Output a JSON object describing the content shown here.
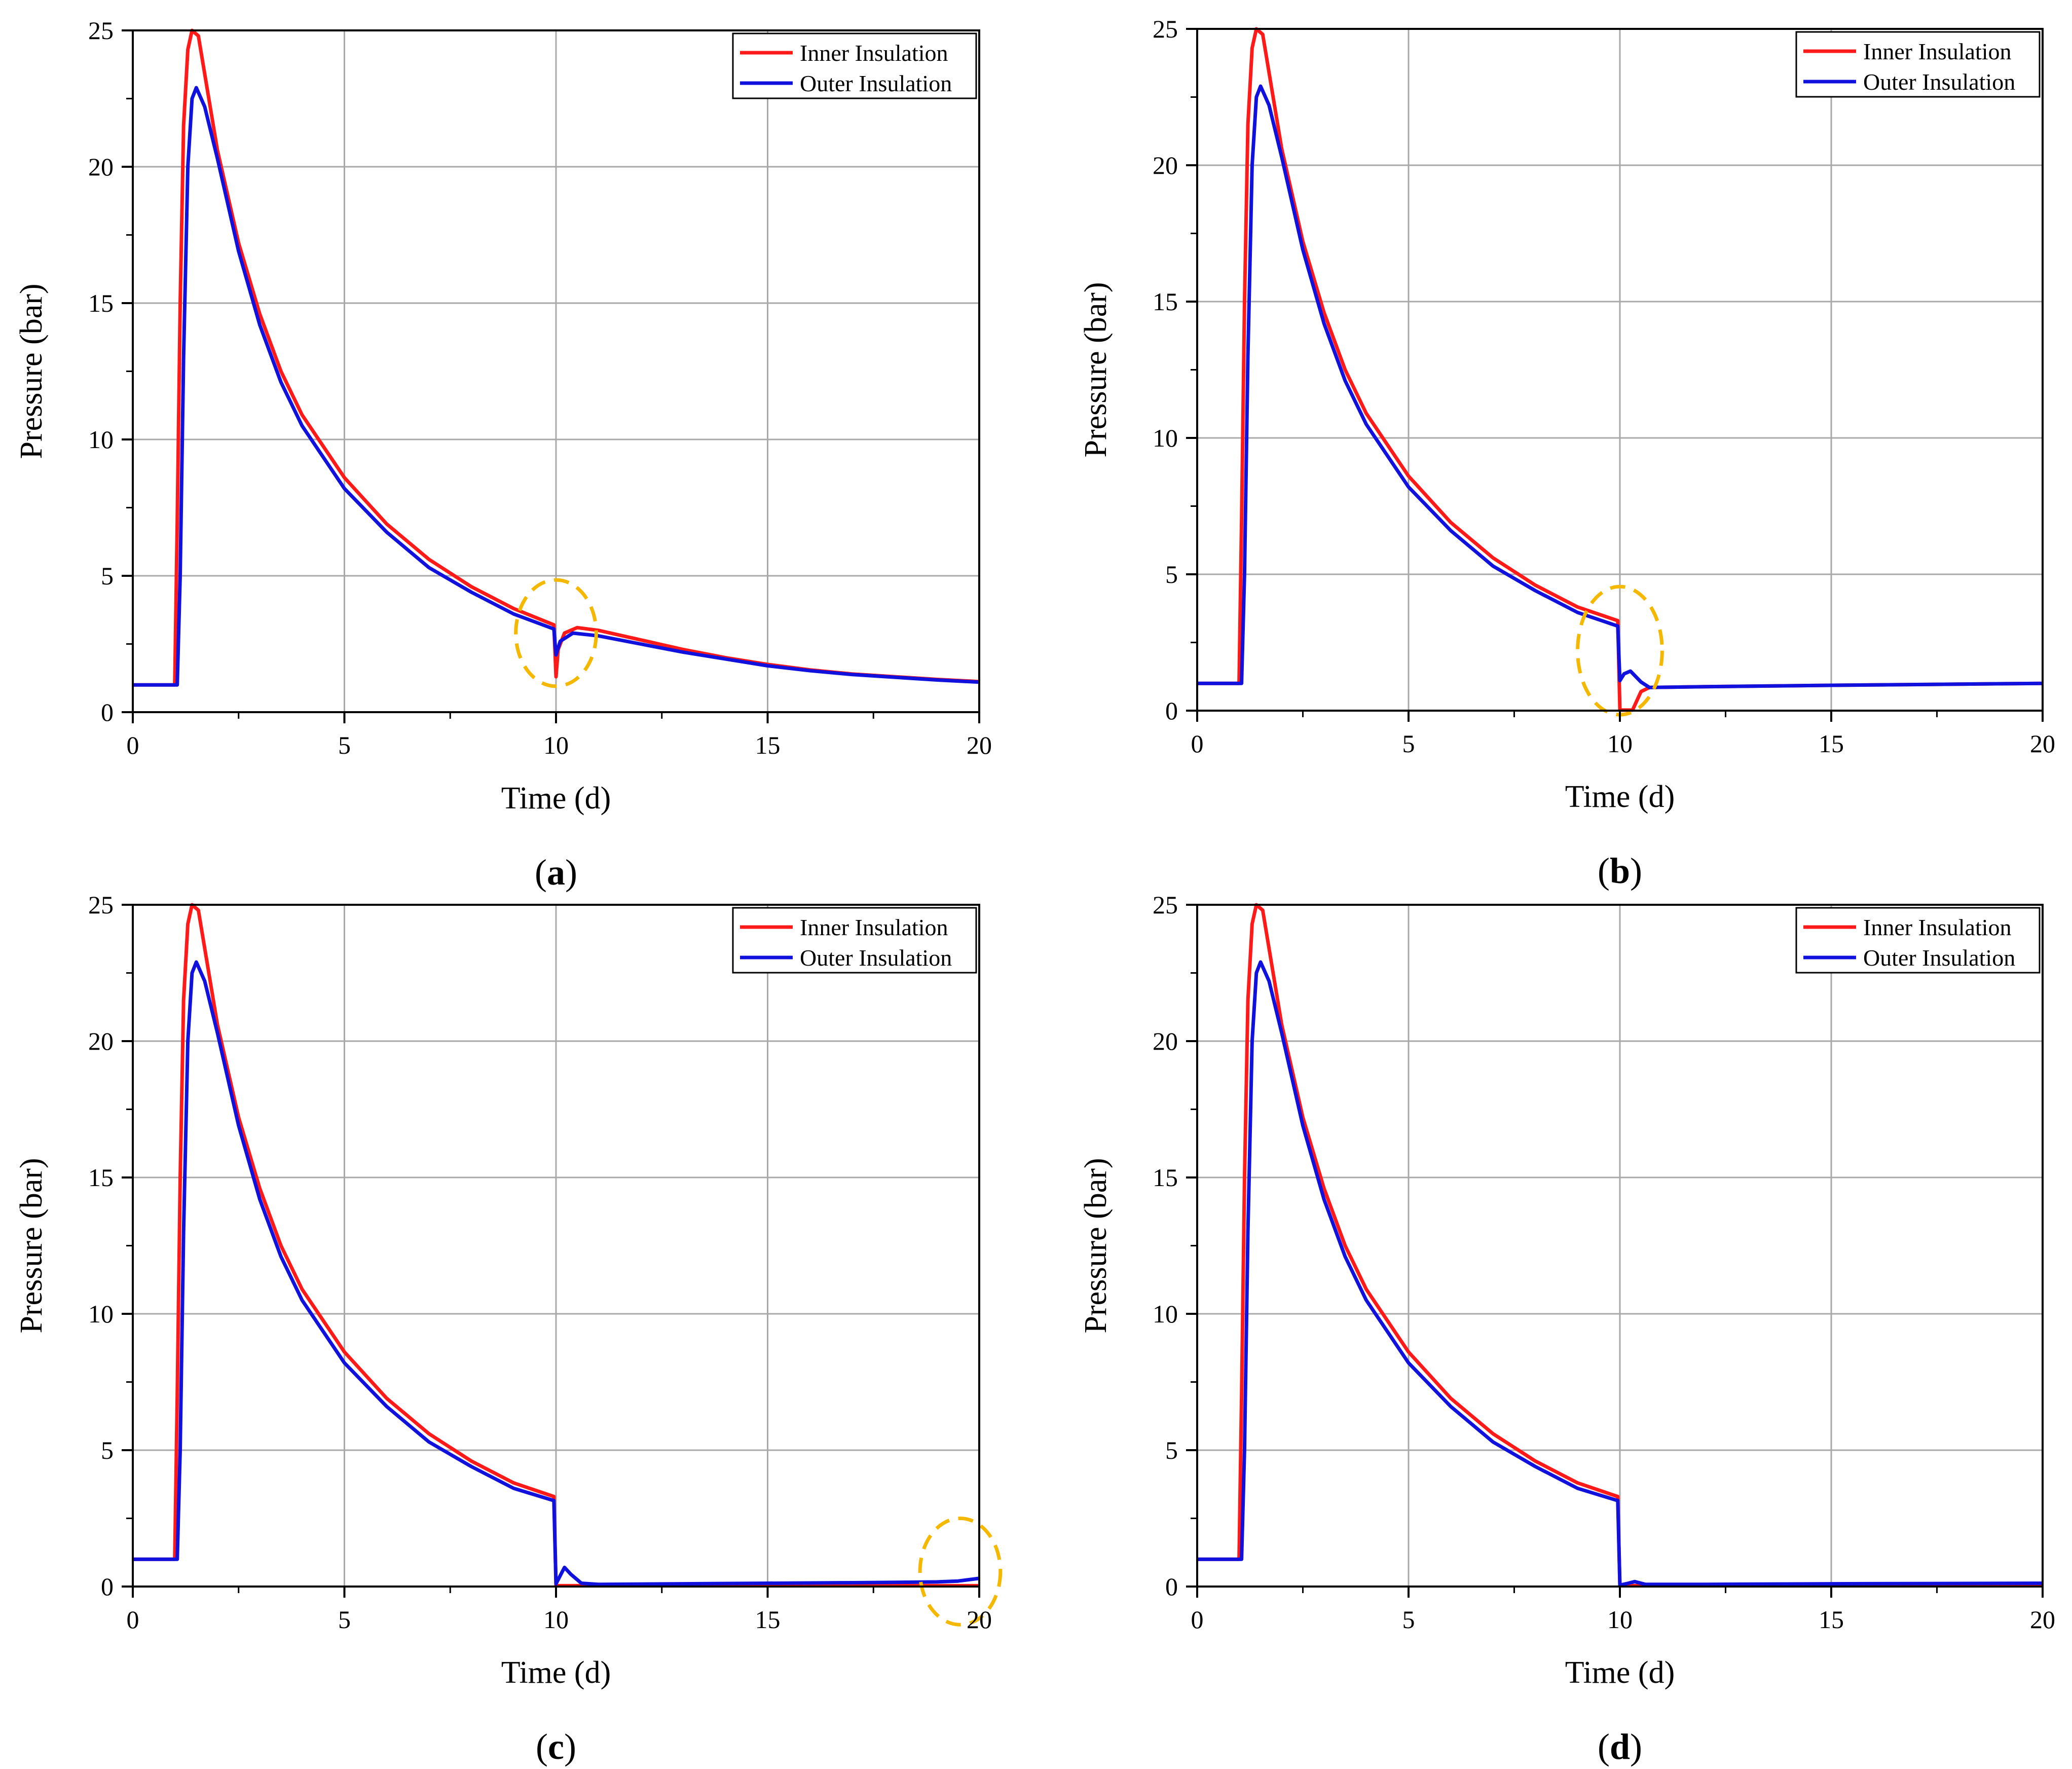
{
  "figure": {
    "type": "multi-panel line chart figure",
    "panels": [
      "a",
      "b",
      "c",
      "d"
    ]
  },
  "colors": {
    "inner": "#ff1a1a",
    "outer": "#1111dd",
    "grid": "#a8a8a8",
    "highlight": "#f5b800",
    "axis": "#000000"
  },
  "chart_data": [
    {
      "panel": "a",
      "caption_open": "(",
      "caption_letter": "a",
      "caption_close": ")",
      "type": "line",
      "title": "",
      "xlabel": "Time (d)",
      "ylabel": "Pressure (bar)",
      "xlim": [
        0,
        20
      ],
      "ylim": [
        0,
        25
      ],
      "xticks": [
        "0",
        "5",
        "10",
        "15",
        "20"
      ],
      "yticks": [
        "0",
        "5",
        "10",
        "15",
        "20",
        "25"
      ],
      "grid": true,
      "legend_position": "top-right",
      "series": [
        {
          "name": "Inner Insulation",
          "color_key": "inner",
          "points": [
            [
              0,
              1.0
            ],
            [
              0.99,
              1.0
            ],
            [
              1.05,
              7
            ],
            [
              1.12,
              15
            ],
            [
              1.2,
              21.5
            ],
            [
              1.3,
              24.3
            ],
            [
              1.4,
              25.0
            ],
            [
              1.55,
              24.8
            ],
            [
              2,
              20.6
            ],
            [
              2.5,
              17.2
            ],
            [
              3,
              14.6
            ],
            [
              3.5,
              12.5
            ],
            [
              4,
              10.9
            ],
            [
              5,
              8.6
            ],
            [
              6,
              6.9
            ],
            [
              7,
              5.6
            ],
            [
              8,
              4.6
            ],
            [
              9,
              3.8
            ],
            [
              9.95,
              3.2
            ],
            [
              10.0,
              1.3
            ],
            [
              10.05,
              2.3
            ],
            [
              10.2,
              2.9
            ],
            [
              10.5,
              3.1
            ],
            [
              11,
              3.0
            ],
            [
              12,
              2.65
            ],
            [
              13,
              2.3
            ],
            [
              14,
              2.0
            ],
            [
              15,
              1.75
            ],
            [
              16,
              1.55
            ],
            [
              17,
              1.4
            ],
            [
              18,
              1.3
            ],
            [
              19,
              1.2
            ],
            [
              20,
              1.12
            ]
          ]
        },
        {
          "name": "Outer Insulation",
          "color_key": "outer",
          "points": [
            [
              0,
              1.0
            ],
            [
              1.05,
              1.0
            ],
            [
              1.12,
              5
            ],
            [
              1.2,
              13
            ],
            [
              1.3,
              20
            ],
            [
              1.4,
              22.5
            ],
            [
              1.5,
              22.9
            ],
            [
              1.7,
              22.2
            ],
            [
              2,
              20.3
            ],
            [
              2.5,
              16.9
            ],
            [
              3,
              14.2
            ],
            [
              3.5,
              12.1
            ],
            [
              4,
              10.5
            ],
            [
              5,
              8.2
            ],
            [
              6,
              6.6
            ],
            [
              7,
              5.3
            ],
            [
              8,
              4.4
            ],
            [
              9,
              3.6
            ],
            [
              9.95,
              3.05
            ],
            [
              10.0,
              2.1
            ],
            [
              10.1,
              2.6
            ],
            [
              10.4,
              2.9
            ],
            [
              11,
              2.8
            ],
            [
              12,
              2.5
            ],
            [
              13,
              2.2
            ],
            [
              14,
              1.95
            ],
            [
              15,
              1.7
            ],
            [
              16,
              1.52
            ],
            [
              17,
              1.38
            ],
            [
              18,
              1.28
            ],
            [
              19,
              1.18
            ],
            [
              20,
              1.1
            ]
          ]
        }
      ],
      "highlights": [
        {
          "x": 10.0,
          "y": 2.9,
          "rx": 0.95,
          "ry": 1.95
        }
      ]
    },
    {
      "panel": "b",
      "caption_open": "(",
      "caption_letter": "b",
      "caption_close": ")",
      "type": "line",
      "title": "",
      "xlabel": "Time (d)",
      "ylabel": "Pressure (bar)",
      "xlim": [
        0,
        20
      ],
      "ylim": [
        0,
        25
      ],
      "xticks": [
        "0",
        "5",
        "10",
        "15",
        "20"
      ],
      "yticks": [
        "0",
        "5",
        "10",
        "15",
        "20",
        "25"
      ],
      "grid": true,
      "legend_position": "top-right",
      "series": [
        {
          "name": "Inner Insulation",
          "color_key": "inner",
          "points": [
            [
              0,
              1.0
            ],
            [
              0.99,
              1.0
            ],
            [
              1.05,
              7
            ],
            [
              1.12,
              15
            ],
            [
              1.2,
              21.5
            ],
            [
              1.3,
              24.3
            ],
            [
              1.4,
              25.0
            ],
            [
              1.55,
              24.8
            ],
            [
              2,
              20.6
            ],
            [
              2.5,
              17.2
            ],
            [
              3,
              14.6
            ],
            [
              3.5,
              12.5
            ],
            [
              4,
              10.9
            ],
            [
              5,
              8.6
            ],
            [
              6,
              6.9
            ],
            [
              7,
              5.6
            ],
            [
              8,
              4.6
            ],
            [
              9,
              3.8
            ],
            [
              9.95,
              3.3
            ],
            [
              10.0,
              0.02
            ],
            [
              10.3,
              0.02
            ],
            [
              10.5,
              0.7
            ],
            [
              10.7,
              0.85
            ],
            [
              12,
              0.88
            ],
            [
              15,
              0.93
            ],
            [
              20,
              1.0
            ]
          ]
        },
        {
          "name": "Outer Insulation",
          "color_key": "outer",
          "points": [
            [
              0,
              1.0
            ],
            [
              1.05,
              1.0
            ],
            [
              1.12,
              5
            ],
            [
              1.2,
              13
            ],
            [
              1.3,
              20
            ],
            [
              1.4,
              22.5
            ],
            [
              1.5,
              22.9
            ],
            [
              1.7,
              22.2
            ],
            [
              2,
              20.3
            ],
            [
              2.5,
              16.9
            ],
            [
              3,
              14.2
            ],
            [
              3.5,
              12.1
            ],
            [
              4,
              10.5
            ],
            [
              5,
              8.2
            ],
            [
              6,
              6.6
            ],
            [
              7,
              5.3
            ],
            [
              8,
              4.4
            ],
            [
              9,
              3.6
            ],
            [
              9.95,
              3.1
            ],
            [
              10.0,
              1.1
            ],
            [
              10.1,
              1.35
            ],
            [
              10.25,
              1.45
            ],
            [
              10.5,
              1.05
            ],
            [
              10.7,
              0.85
            ],
            [
              12,
              0.88
            ],
            [
              15,
              0.93
            ],
            [
              20,
              1.0
            ]
          ]
        }
      ],
      "highlights": [
        {
          "x": 10.0,
          "y": 2.2,
          "rx": 1.0,
          "ry": 2.35
        }
      ]
    },
    {
      "panel": "c",
      "caption_open": "(",
      "caption_letter": "c",
      "caption_close": ")",
      "type": "line",
      "title": "",
      "xlabel": "Time (d)",
      "ylabel": "Pressure (bar)",
      "xlim": [
        0,
        20
      ],
      "ylim": [
        0,
        25
      ],
      "xticks": [
        "0",
        "5",
        "10",
        "15",
        "20"
      ],
      "yticks": [
        "0",
        "5",
        "10",
        "15",
        "20",
        "25"
      ],
      "grid": true,
      "legend_position": "top-right",
      "series": [
        {
          "name": "Inner Insulation",
          "color_key": "inner",
          "points": [
            [
              0,
              1.0
            ],
            [
              0.99,
              1.0
            ],
            [
              1.05,
              7
            ],
            [
              1.12,
              15
            ],
            [
              1.2,
              21.5
            ],
            [
              1.3,
              24.3
            ],
            [
              1.4,
              25.0
            ],
            [
              1.55,
              24.8
            ],
            [
              2,
              20.6
            ],
            [
              2.5,
              17.2
            ],
            [
              3,
              14.6
            ],
            [
              3.5,
              12.5
            ],
            [
              4,
              10.9
            ],
            [
              5,
              8.6
            ],
            [
              6,
              6.9
            ],
            [
              7,
              5.6
            ],
            [
              8,
              4.6
            ],
            [
              9,
              3.8
            ],
            [
              9.95,
              3.3
            ],
            [
              10.0,
              0.03
            ],
            [
              20,
              0.03
            ]
          ]
        },
        {
          "name": "Outer Insulation",
          "color_key": "outer",
          "points": [
            [
              0,
              1.0
            ],
            [
              1.05,
              1.0
            ],
            [
              1.12,
              5
            ],
            [
              1.2,
              13
            ],
            [
              1.3,
              20
            ],
            [
              1.4,
              22.5
            ],
            [
              1.5,
              22.9
            ],
            [
              1.7,
              22.2
            ],
            [
              2,
              20.3
            ],
            [
              2.5,
              16.9
            ],
            [
              3,
              14.2
            ],
            [
              3.5,
              12.1
            ],
            [
              4,
              10.5
            ],
            [
              5,
              8.2
            ],
            [
              6,
              6.6
            ],
            [
              7,
              5.3
            ],
            [
              8,
              4.4
            ],
            [
              9,
              3.6
            ],
            [
              9.95,
              3.15
            ],
            [
              10.0,
              0.1
            ],
            [
              10.1,
              0.4
            ],
            [
              10.2,
              0.7
            ],
            [
              10.35,
              0.45
            ],
            [
              10.6,
              0.12
            ],
            [
              11,
              0.08
            ],
            [
              13,
              0.1
            ],
            [
              15,
              0.12
            ],
            [
              17,
              0.14
            ],
            [
              19,
              0.17
            ],
            [
              19.5,
              0.2
            ],
            [
              20,
              0.3
            ]
          ]
        }
      ],
      "highlights": [
        {
          "x": 19.55,
          "y": 0.55,
          "rx": 0.95,
          "ry": 1.95
        }
      ]
    },
    {
      "panel": "d",
      "caption_open": "(",
      "caption_letter": "d",
      "caption_close": ")",
      "type": "line",
      "title": "",
      "xlabel": "Time (d)",
      "ylabel": "Pressure (bar)",
      "xlim": [
        0,
        20
      ],
      "ylim": [
        0,
        25
      ],
      "xticks": [
        "0",
        "5",
        "10",
        "15",
        "20"
      ],
      "yticks": [
        "0",
        "5",
        "10",
        "15",
        "20",
        "25"
      ],
      "grid": true,
      "legend_position": "top-right",
      "series": [
        {
          "name": "Inner Insulation",
          "color_key": "inner",
          "points": [
            [
              0,
              1.0
            ],
            [
              0.99,
              1.0
            ],
            [
              1.05,
              7
            ],
            [
              1.12,
              15
            ],
            [
              1.2,
              21.5
            ],
            [
              1.3,
              24.3
            ],
            [
              1.4,
              25.0
            ],
            [
              1.55,
              24.8
            ],
            [
              2,
              20.6
            ],
            [
              2.5,
              17.2
            ],
            [
              3,
              14.6
            ],
            [
              3.5,
              12.5
            ],
            [
              4,
              10.9
            ],
            [
              5,
              8.6
            ],
            [
              6,
              6.9
            ],
            [
              7,
              5.6
            ],
            [
              8,
              4.6
            ],
            [
              9,
              3.8
            ],
            [
              9.95,
              3.3
            ],
            [
              10.0,
              0.03
            ],
            [
              20,
              0.03
            ]
          ]
        },
        {
          "name": "Outer Insulation",
          "color_key": "outer",
          "points": [
            [
              0,
              1.0
            ],
            [
              1.05,
              1.0
            ],
            [
              1.12,
              5
            ],
            [
              1.2,
              13
            ],
            [
              1.3,
              20
            ],
            [
              1.4,
              22.5
            ],
            [
              1.5,
              22.9
            ],
            [
              1.7,
              22.2
            ],
            [
              2,
              20.3
            ],
            [
              2.5,
              16.9
            ],
            [
              3,
              14.2
            ],
            [
              3.5,
              12.1
            ],
            [
              4,
              10.5
            ],
            [
              5,
              8.2
            ],
            [
              6,
              6.6
            ],
            [
              7,
              5.3
            ],
            [
              8,
              4.4
            ],
            [
              9,
              3.6
            ],
            [
              9.95,
              3.15
            ],
            [
              10.0,
              0.05
            ],
            [
              10.2,
              0.12
            ],
            [
              10.35,
              0.18
            ],
            [
              10.6,
              0.08
            ],
            [
              12,
              0.08
            ],
            [
              15,
              0.1
            ],
            [
              20,
              0.12
            ]
          ]
        }
      ],
      "highlights": []
    }
  ]
}
